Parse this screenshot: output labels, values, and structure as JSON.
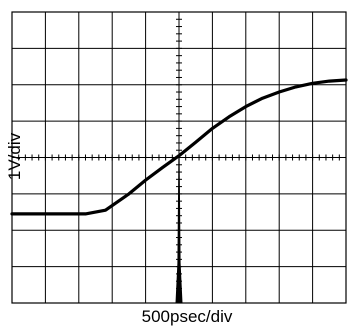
{
  "chart_data": {
    "type": "line",
    "title": "",
    "xlabel": "500psec/div",
    "ylabel": "1V/div",
    "x_divisions": 10,
    "y_divisions": 8,
    "xlim": [
      -5,
      5
    ],
    "ylim": [
      -4,
      4
    ],
    "grid": true,
    "series": [
      {
        "name": "",
        "x": [
          -5.0,
          -2.8,
          -2.2,
          -1.5,
          -1.0,
          -0.5,
          0.0,
          0.5,
          1.0,
          1.5,
          2.0,
          2.5,
          3.0,
          3.5,
          4.0,
          4.5,
          5.0
        ],
        "y": [
          -1.55,
          -1.55,
          -1.45,
          -1.0,
          -0.62,
          -0.28,
          0.05,
          0.42,
          0.8,
          1.12,
          1.4,
          1.63,
          1.8,
          1.94,
          2.04,
          2.1,
          2.13
        ]
      }
    ],
    "trigger_marker": {
      "x": 0.0,
      "y_range": [
        -4,
        0.05
      ]
    },
    "colors": {
      "trace": "#000000",
      "grid": "#000000",
      "background": "#ffffff"
    }
  }
}
